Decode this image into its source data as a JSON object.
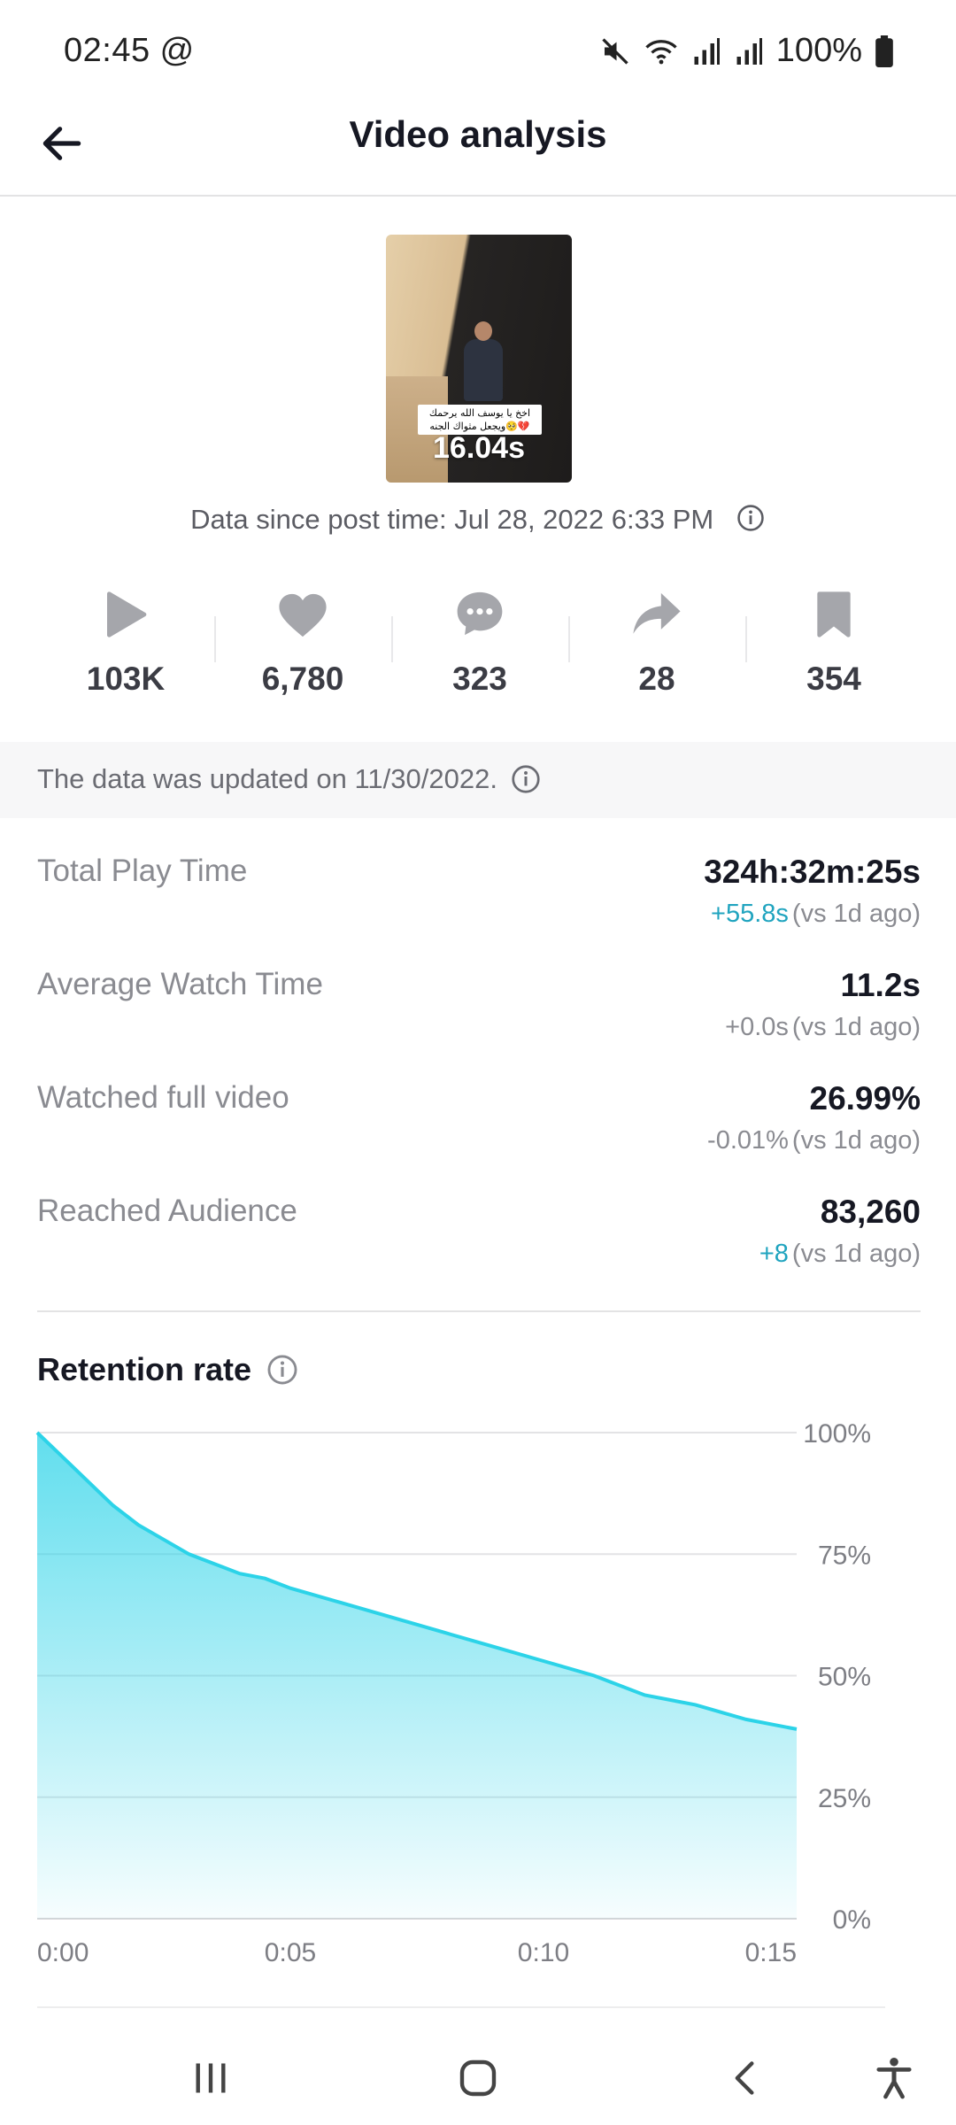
{
  "status_bar": {
    "time": "02:45",
    "at_symbol": "@",
    "battery": "100%",
    "icons": [
      "mute-icon",
      "wifi-icon",
      "signal-icon",
      "signal-icon",
      "battery-icon"
    ]
  },
  "header": {
    "title": "Video analysis",
    "back_icon": "arrow-left-icon"
  },
  "video": {
    "duration": "16.04s",
    "caption_line1": "اخخ يا يوسف الله يرحمك",
    "caption_line2": "ويجعل مثواك الجنه🥺💔",
    "post_time": "Data since post time: Jul 28, 2022 6:33 PM"
  },
  "stats": [
    {
      "icon": "play-icon",
      "value": "103K"
    },
    {
      "icon": "heart-icon",
      "value": "6,780"
    },
    {
      "icon": "comment-icon",
      "value": "323"
    },
    {
      "icon": "share-icon",
      "value": "28"
    },
    {
      "icon": "bookmark-icon",
      "value": "354"
    }
  ],
  "update_notice": "The data was updated on 11/30/2022.",
  "metrics": [
    {
      "label": "Total Play Time",
      "value": "324h:32m:25s",
      "delta": "+55.8s",
      "suffix": "(vs 1d ago)",
      "delta_positive": true
    },
    {
      "label": "Average Watch Time",
      "value": "11.2s",
      "delta": "+0.0s",
      "suffix": "(vs 1d ago)",
      "delta_positive": false
    },
    {
      "label": "Watched full video",
      "value": "26.99%",
      "delta": "-0.01%",
      "suffix": "(vs 1d ago)",
      "delta_positive": false
    },
    {
      "label": "Reached Audience",
      "value": "83,260",
      "delta": "+8",
      "suffix": "(vs 1d ago)",
      "delta_positive": true
    }
  ],
  "retention": {
    "title": "Retention rate"
  },
  "chart_data": {
    "type": "area",
    "title": "Retention rate",
    "x_ticks": [
      "0:00",
      "0:05",
      "0:10",
      "0:15"
    ],
    "y_ticks": [
      "100%",
      "75%",
      "50%",
      "25%",
      "0%"
    ],
    "xlim": [
      0,
      15
    ],
    "ylim": [
      0,
      100
    ],
    "grid": true,
    "x": [
      0,
      0.6,
      1.2,
      1.5,
      2.0,
      2.5,
      3.0,
      3.5,
      4.0,
      4.5,
      5.0,
      6.0,
      7.0,
      8.0,
      9.0,
      10.0,
      11.0,
      12.0,
      13.0,
      14.0,
      15.0
    ],
    "y": [
      100,
      94,
      88,
      85,
      81,
      78,
      75,
      73,
      71,
      70,
      68,
      65,
      62,
      59,
      56,
      53,
      50,
      46,
      44,
      41,
      39
    ],
    "color": "#2cd3e8"
  },
  "colors": {
    "accent": "#20a4bf",
    "chart_line": "#2cd3e8"
  }
}
